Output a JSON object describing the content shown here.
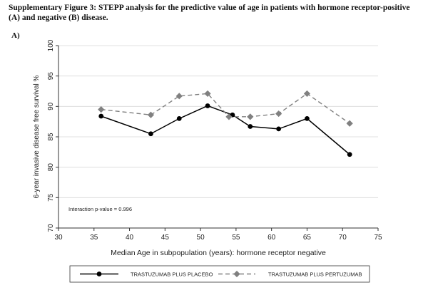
{
  "caption": "Supplementary Figure 3: STEPP analysis for the predictive value of age in patients with hormone receptor-positive (A) and negative (B) disease.",
  "panel_label": "A)",
  "chart_data": {
    "type": "line",
    "title": "",
    "xlabel": "Median Age in subpopulation (years): hormone receptor negative",
    "ylabel": "6-year invasive disease free survival %",
    "xlim": [
      30,
      75
    ],
    "ylim": [
      70,
      100
    ],
    "xticks": [
      30,
      35,
      40,
      45,
      50,
      55,
      60,
      65,
      70,
      75
    ],
    "yticks": [
      70,
      75,
      80,
      85,
      90,
      95,
      100
    ],
    "annotation": "Interaction p-value = 0.996",
    "legend_position": "bottom",
    "series": [
      {
        "name": "TRASTUZUMAB PLUS PLACEBO",
        "color": "#000000",
        "line_style": "solid",
        "marker": "circle",
        "x": [
          36,
          43,
          47,
          51,
          54.5,
          57,
          61,
          65,
          71
        ],
        "y": [
          88.4,
          85.5,
          88.0,
          90.1,
          88.6,
          86.7,
          86.3,
          88.0,
          82.1
        ]
      },
      {
        "name": "TRASTUZUMAB PLUS PERTUZUMAB",
        "color": "#808080",
        "line_style": "dashed",
        "marker": "diamond",
        "x": [
          36,
          43,
          47,
          51,
          54,
          57,
          61,
          65,
          71
        ],
        "y": [
          89.5,
          88.6,
          91.7,
          92.1,
          88.3,
          88.3,
          88.8,
          92.1,
          87.2
        ]
      }
    ]
  }
}
